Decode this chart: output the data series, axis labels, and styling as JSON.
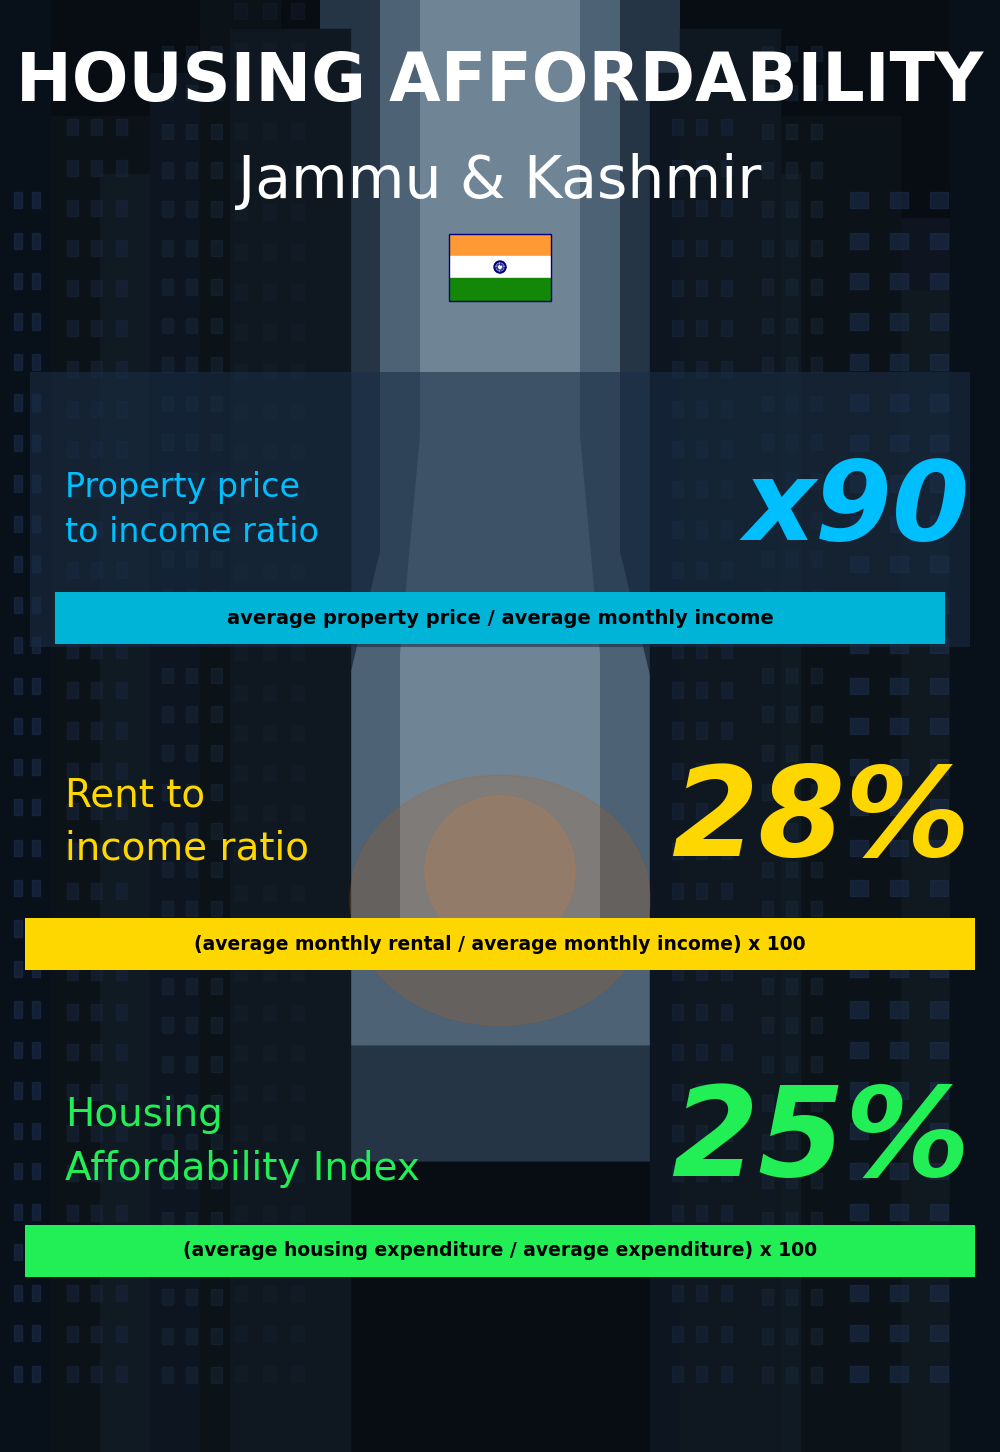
{
  "title_line1": "HOUSING AFFORDABILITY",
  "title_line2": "Jammu & Kashmir",
  "section1_label": "Property price\nto income ratio",
  "section1_value": "x90",
  "section1_sublabel": "average property price / average monthly income",
  "section1_label_color": "#00bfff",
  "section1_value_color": "#00bfff",
  "section1_bar_color": "#00b4d8",
  "section2_label": "Rent to\nincome ratio",
  "section2_value": "28%",
  "section2_sublabel": "(average monthly rental / average monthly income) x 100",
  "section2_label_color": "#ffd700",
  "section2_value_color": "#ffd700",
  "section2_bar_color": "#ffd700",
  "section3_label": "Housing\nAffordability Index",
  "section3_value": "25%",
  "section3_sublabel": "(average housing expenditure / average expenditure) x 100",
  "section3_label_color": "#22ee55",
  "section3_value_color": "#22ee55",
  "section3_bar_color": "#22ee55",
  "bg_color": "#080d14",
  "title1_color": "#ffffff",
  "title2_color": "#ffffff",
  "panel1_color": "#1e2d40",
  "panel1_alpha": 0.55
}
